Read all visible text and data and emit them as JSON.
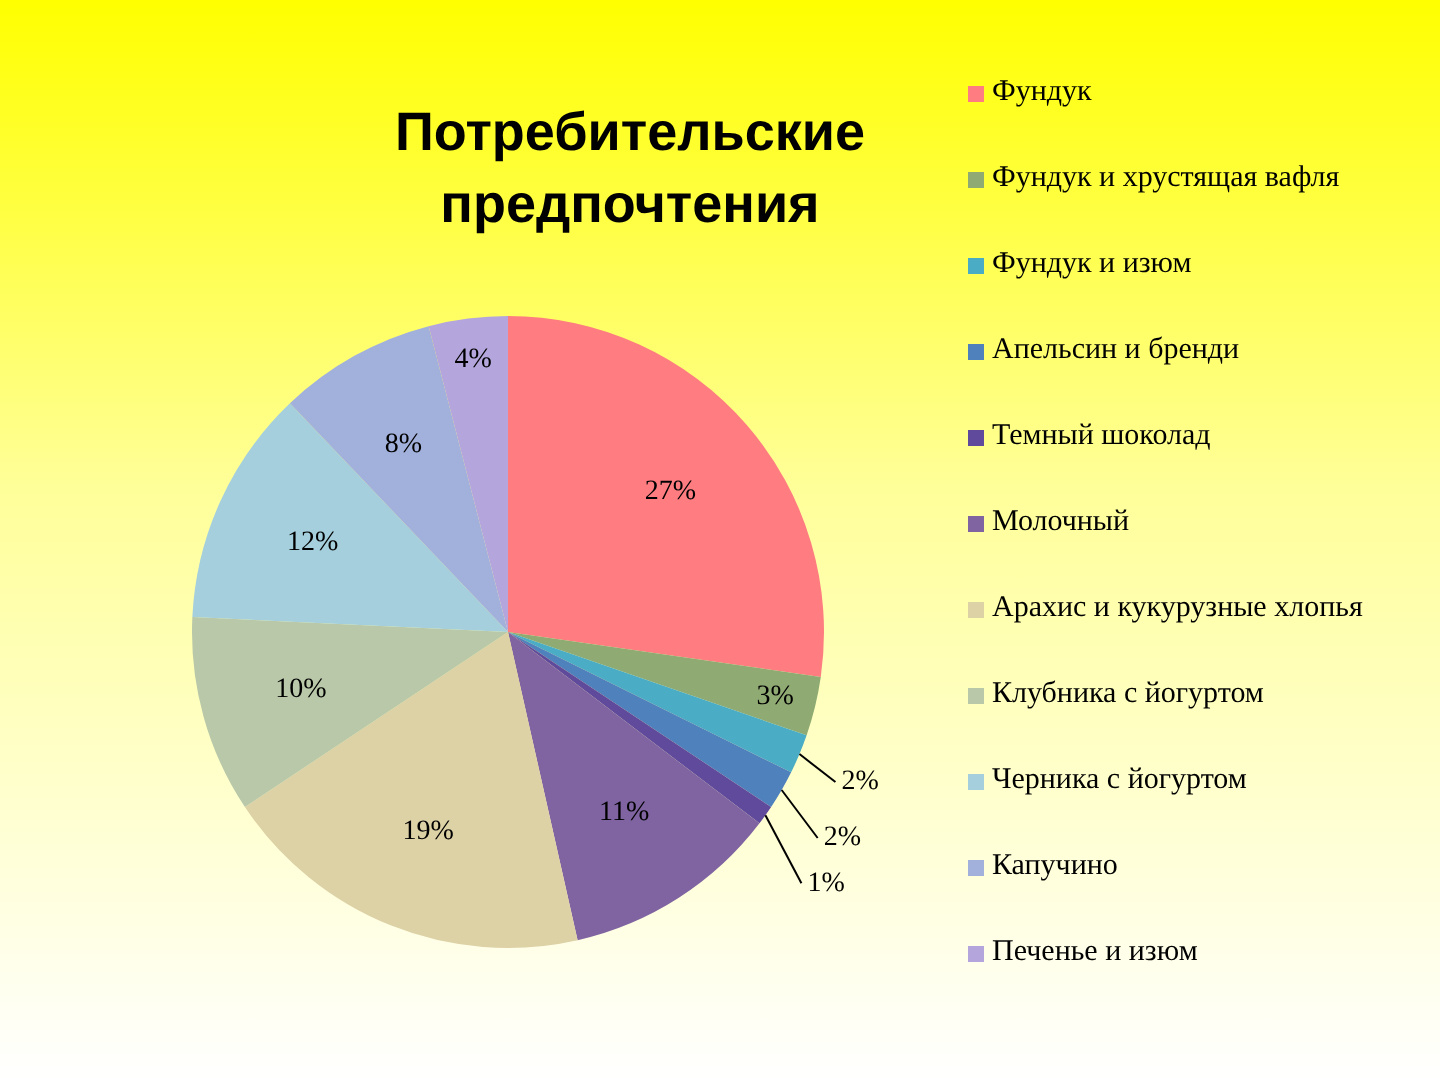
{
  "chart_data": {
    "type": "pie",
    "title": "Потребительские предпочтения",
    "categories": [
      "Фундук",
      "Фундук и хрустящая вафля",
      "Фундук и изюм",
      "Апельсин и бренди",
      "Темный шоколад",
      "Молочный",
      "Арахис и кукурузные хлопья",
      "Клубника с йогуртом",
      "Черника с йогуртом",
      "Капучино",
      "Печенье и изюм"
    ],
    "values": [
      27,
      3,
      2,
      2,
      1,
      11,
      19,
      10,
      12,
      8,
      4
    ],
    "value_labels": [
      "27%",
      "3%",
      "2%",
      "2%",
      "1%",
      "11%",
      "19%",
      "10%",
      "12%",
      "8%",
      "4%"
    ],
    "colors": [
      "#ff7c80",
      "#8faa73",
      "#4bacc6",
      "#4f81bd",
      "#604a9b",
      "#8064a2",
      "#ddd1a6",
      "#b9c8a8",
      "#a5cfdd",
      "#a2b1dc",
      "#b4a6dc"
    ],
    "legend": "right"
  }
}
